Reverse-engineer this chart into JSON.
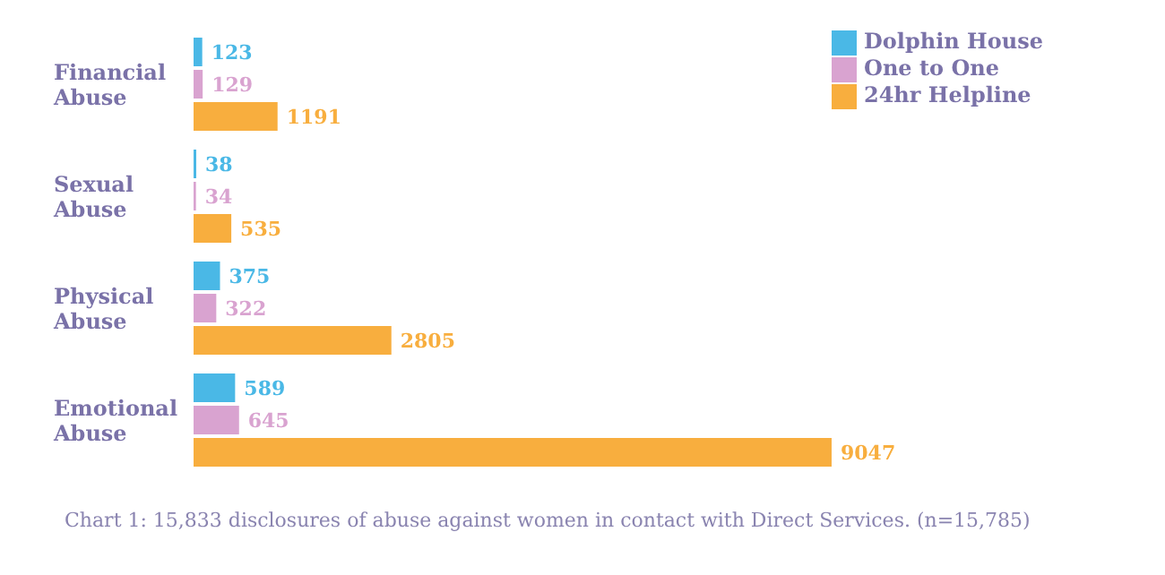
{
  "chart_data": {
    "type": "bar",
    "orientation": "horizontal",
    "tick_labels": false,
    "data_labels": true,
    "legend": "top right",
    "categories": [
      "Financial Abuse",
      "Sexual Abuse",
      "Physical Abuse",
      "Emotional Abuse"
    ],
    "series": [
      {
        "name": "Dolphin House",
        "color": "#4ab8e6",
        "values": [
          123,
          38,
          375,
          589
        ]
      },
      {
        "name": "One to One",
        "color": "#d9a3d0",
        "values": [
          129,
          34,
          322,
          645
        ]
      },
      {
        "name": "24hr Helpline",
        "color": "#f8ae3e",
        "values": [
          1191,
          535,
          2805,
          9047
        ]
      }
    ],
    "annotations": [
      "Chart 1: 15,833 disclosures of abuse against women in contact with Direct Services. (n=15,785)"
    ]
  }
}
